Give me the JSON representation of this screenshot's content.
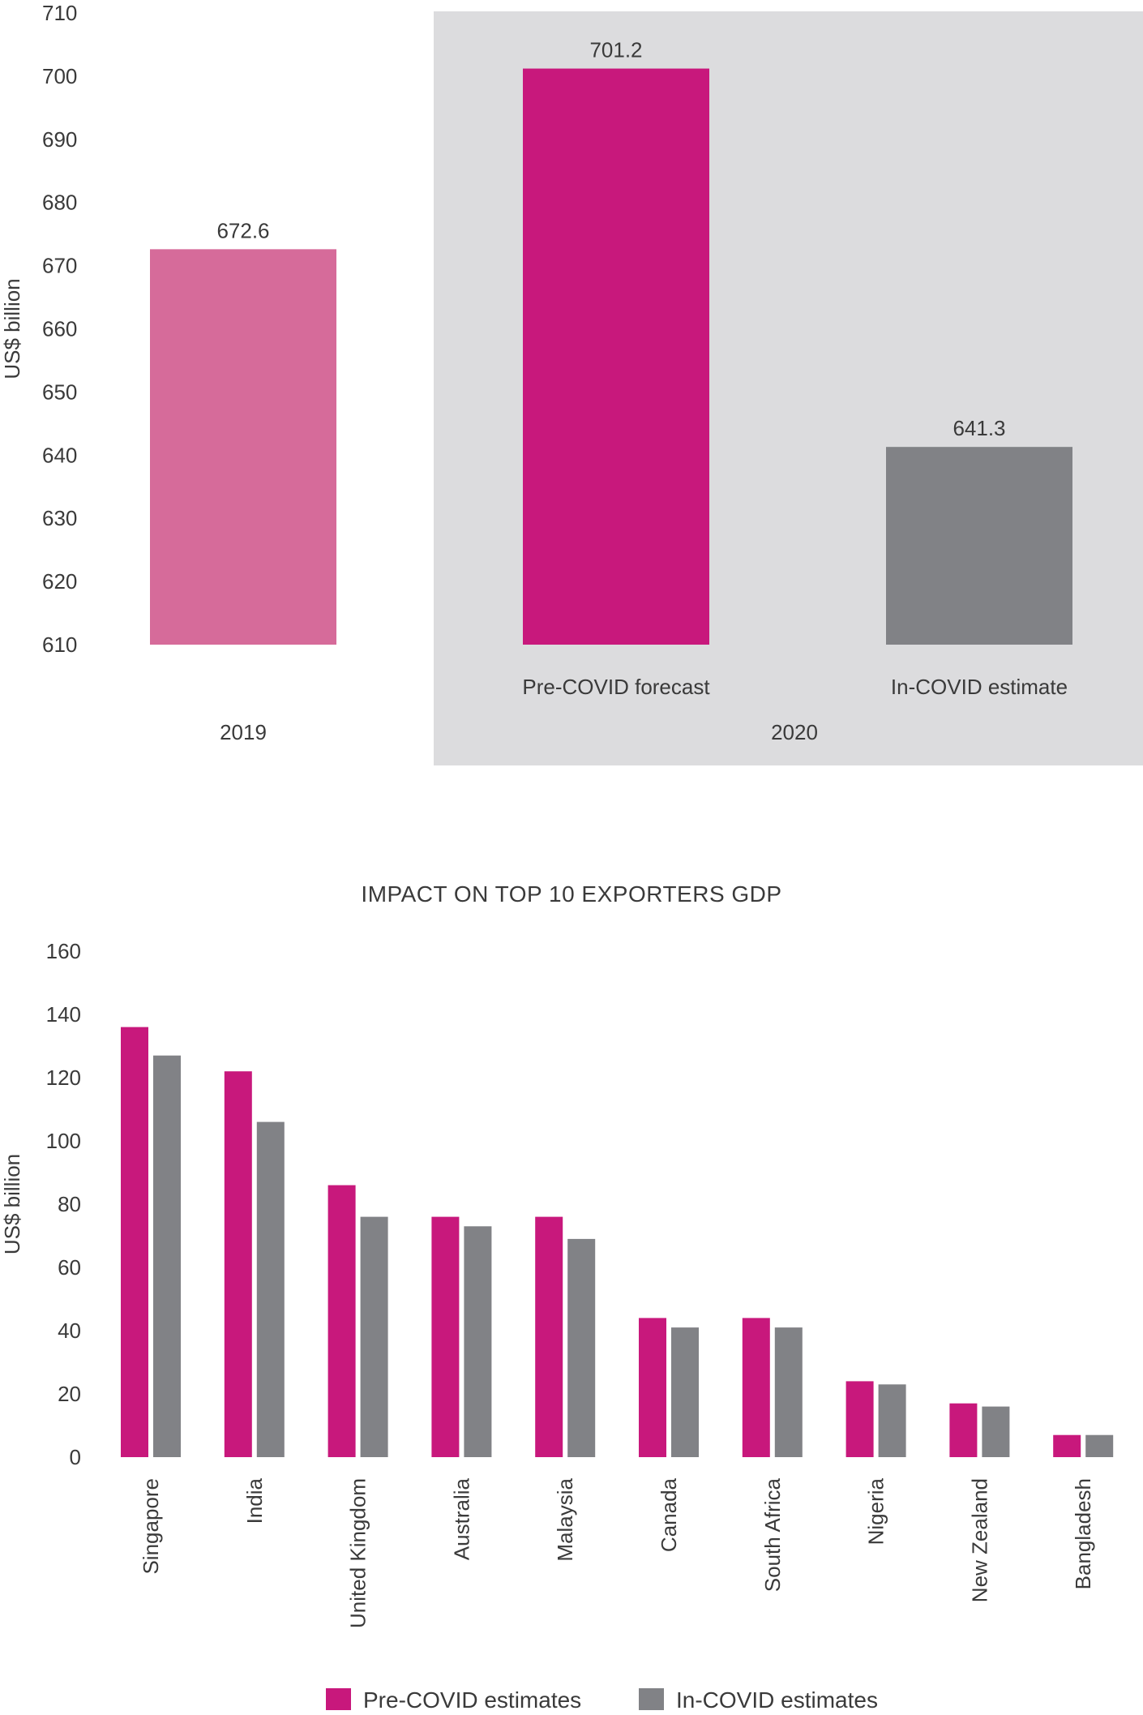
{
  "colors": {
    "pink_light": "#d66b9a",
    "magenta": "#c8187c",
    "grey": "#818286",
    "panel_bg": "#dcdcde"
  },
  "chart_data": [
    {
      "type": "bar",
      "ylabel": "US$ billion",
      "ylim": [
        610,
        710
      ],
      "yticks": [
        610,
        620,
        630,
        640,
        650,
        660,
        670,
        680,
        690,
        700,
        710
      ],
      "bars": [
        {
          "label": "",
          "group": "2019",
          "value": 672.6,
          "value_label": "672.6",
          "color": "#d66b9a"
        },
        {
          "label": "Pre-COVID forecast",
          "group": "2020",
          "value": 701.2,
          "value_label": "701.2",
          "color": "#c8187c"
        },
        {
          "label": "In-COVID estimate",
          "group": "2020",
          "value": 641.3,
          "value_label": "641.3",
          "color": "#818286"
        }
      ],
      "groups": [
        "2019",
        "2020"
      ],
      "highlight_group": "2020",
      "grid": false
    },
    {
      "type": "bar",
      "title": "IMPACT ON TOP 10 EXPORTERS GDP",
      "ylabel": "US$ billion",
      "ylim": [
        0,
        160
      ],
      "yticks": [
        0,
        20,
        40,
        60,
        80,
        100,
        120,
        140,
        160
      ],
      "categories": [
        "Singapore",
        "India",
        "United Kingdom",
        "Australia",
        "Malaysia",
        "Canada",
        "South Africa",
        "Nigeria",
        "New Zealand",
        "Bangladesh"
      ],
      "series": [
        {
          "name": "Pre-COVID estimates",
          "color": "#c8187c",
          "values": [
            136,
            122,
            86,
            76,
            76,
            44,
            44,
            24,
            17,
            7
          ]
        },
        {
          "name": "In-COVID estimates",
          "color": "#818286",
          "values": [
            127,
            106,
            76,
            73,
            69,
            41,
            41,
            23,
            16,
            7
          ]
        }
      ],
      "legend_position": "bottom",
      "grid": false
    }
  ]
}
